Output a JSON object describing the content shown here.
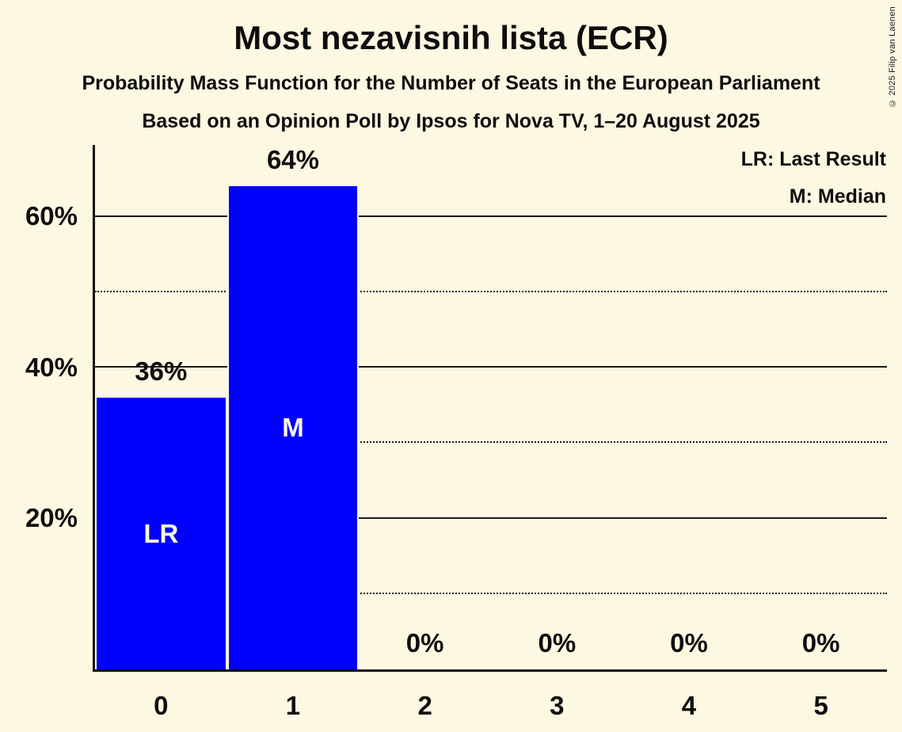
{
  "title": "Most nezavisnih lista (ECR)",
  "subtitle1": "Probability Mass Function for the Number of Seats in the European Parliament",
  "subtitle2": "Based on an Opinion Poll by Ipsos for Nova TV, 1–20 August 2025",
  "legend": {
    "lr": "LR: Last Result",
    "m": "M: Median"
  },
  "copyright": "© 2025 Filip van Laenen",
  "colors": {
    "background": "#FDF8E2",
    "bar": "#0000FF",
    "text": "#0E0E0E",
    "gridline": "#1A1A1A",
    "bar_label": "#FDF8E2"
  },
  "chart_data": {
    "type": "bar",
    "title": "Most nezavisnih lista (ECR)",
    "xlabel": "",
    "ylabel": "",
    "categories": [
      "0",
      "1",
      "2",
      "3",
      "4",
      "5"
    ],
    "values": [
      36,
      64,
      0,
      0,
      0,
      0
    ],
    "value_labels": [
      "36%",
      "64%",
      "0%",
      "0%",
      "0%",
      "0%"
    ],
    "bar_annotations": [
      "LR",
      "M",
      "",
      "",
      "",
      ""
    ],
    "ylim": [
      0,
      69.5
    ],
    "y_ticks": [
      {
        "value": 20,
        "label": "20%"
      },
      {
        "value": 40,
        "label": "40%"
      },
      {
        "value": 60,
        "label": "60%"
      }
    ],
    "solid_gridlines": [
      20,
      40,
      60
    ],
    "dotted_gridlines": [
      10,
      30,
      50
    ],
    "grid": true,
    "legend_position": "top-right"
  }
}
